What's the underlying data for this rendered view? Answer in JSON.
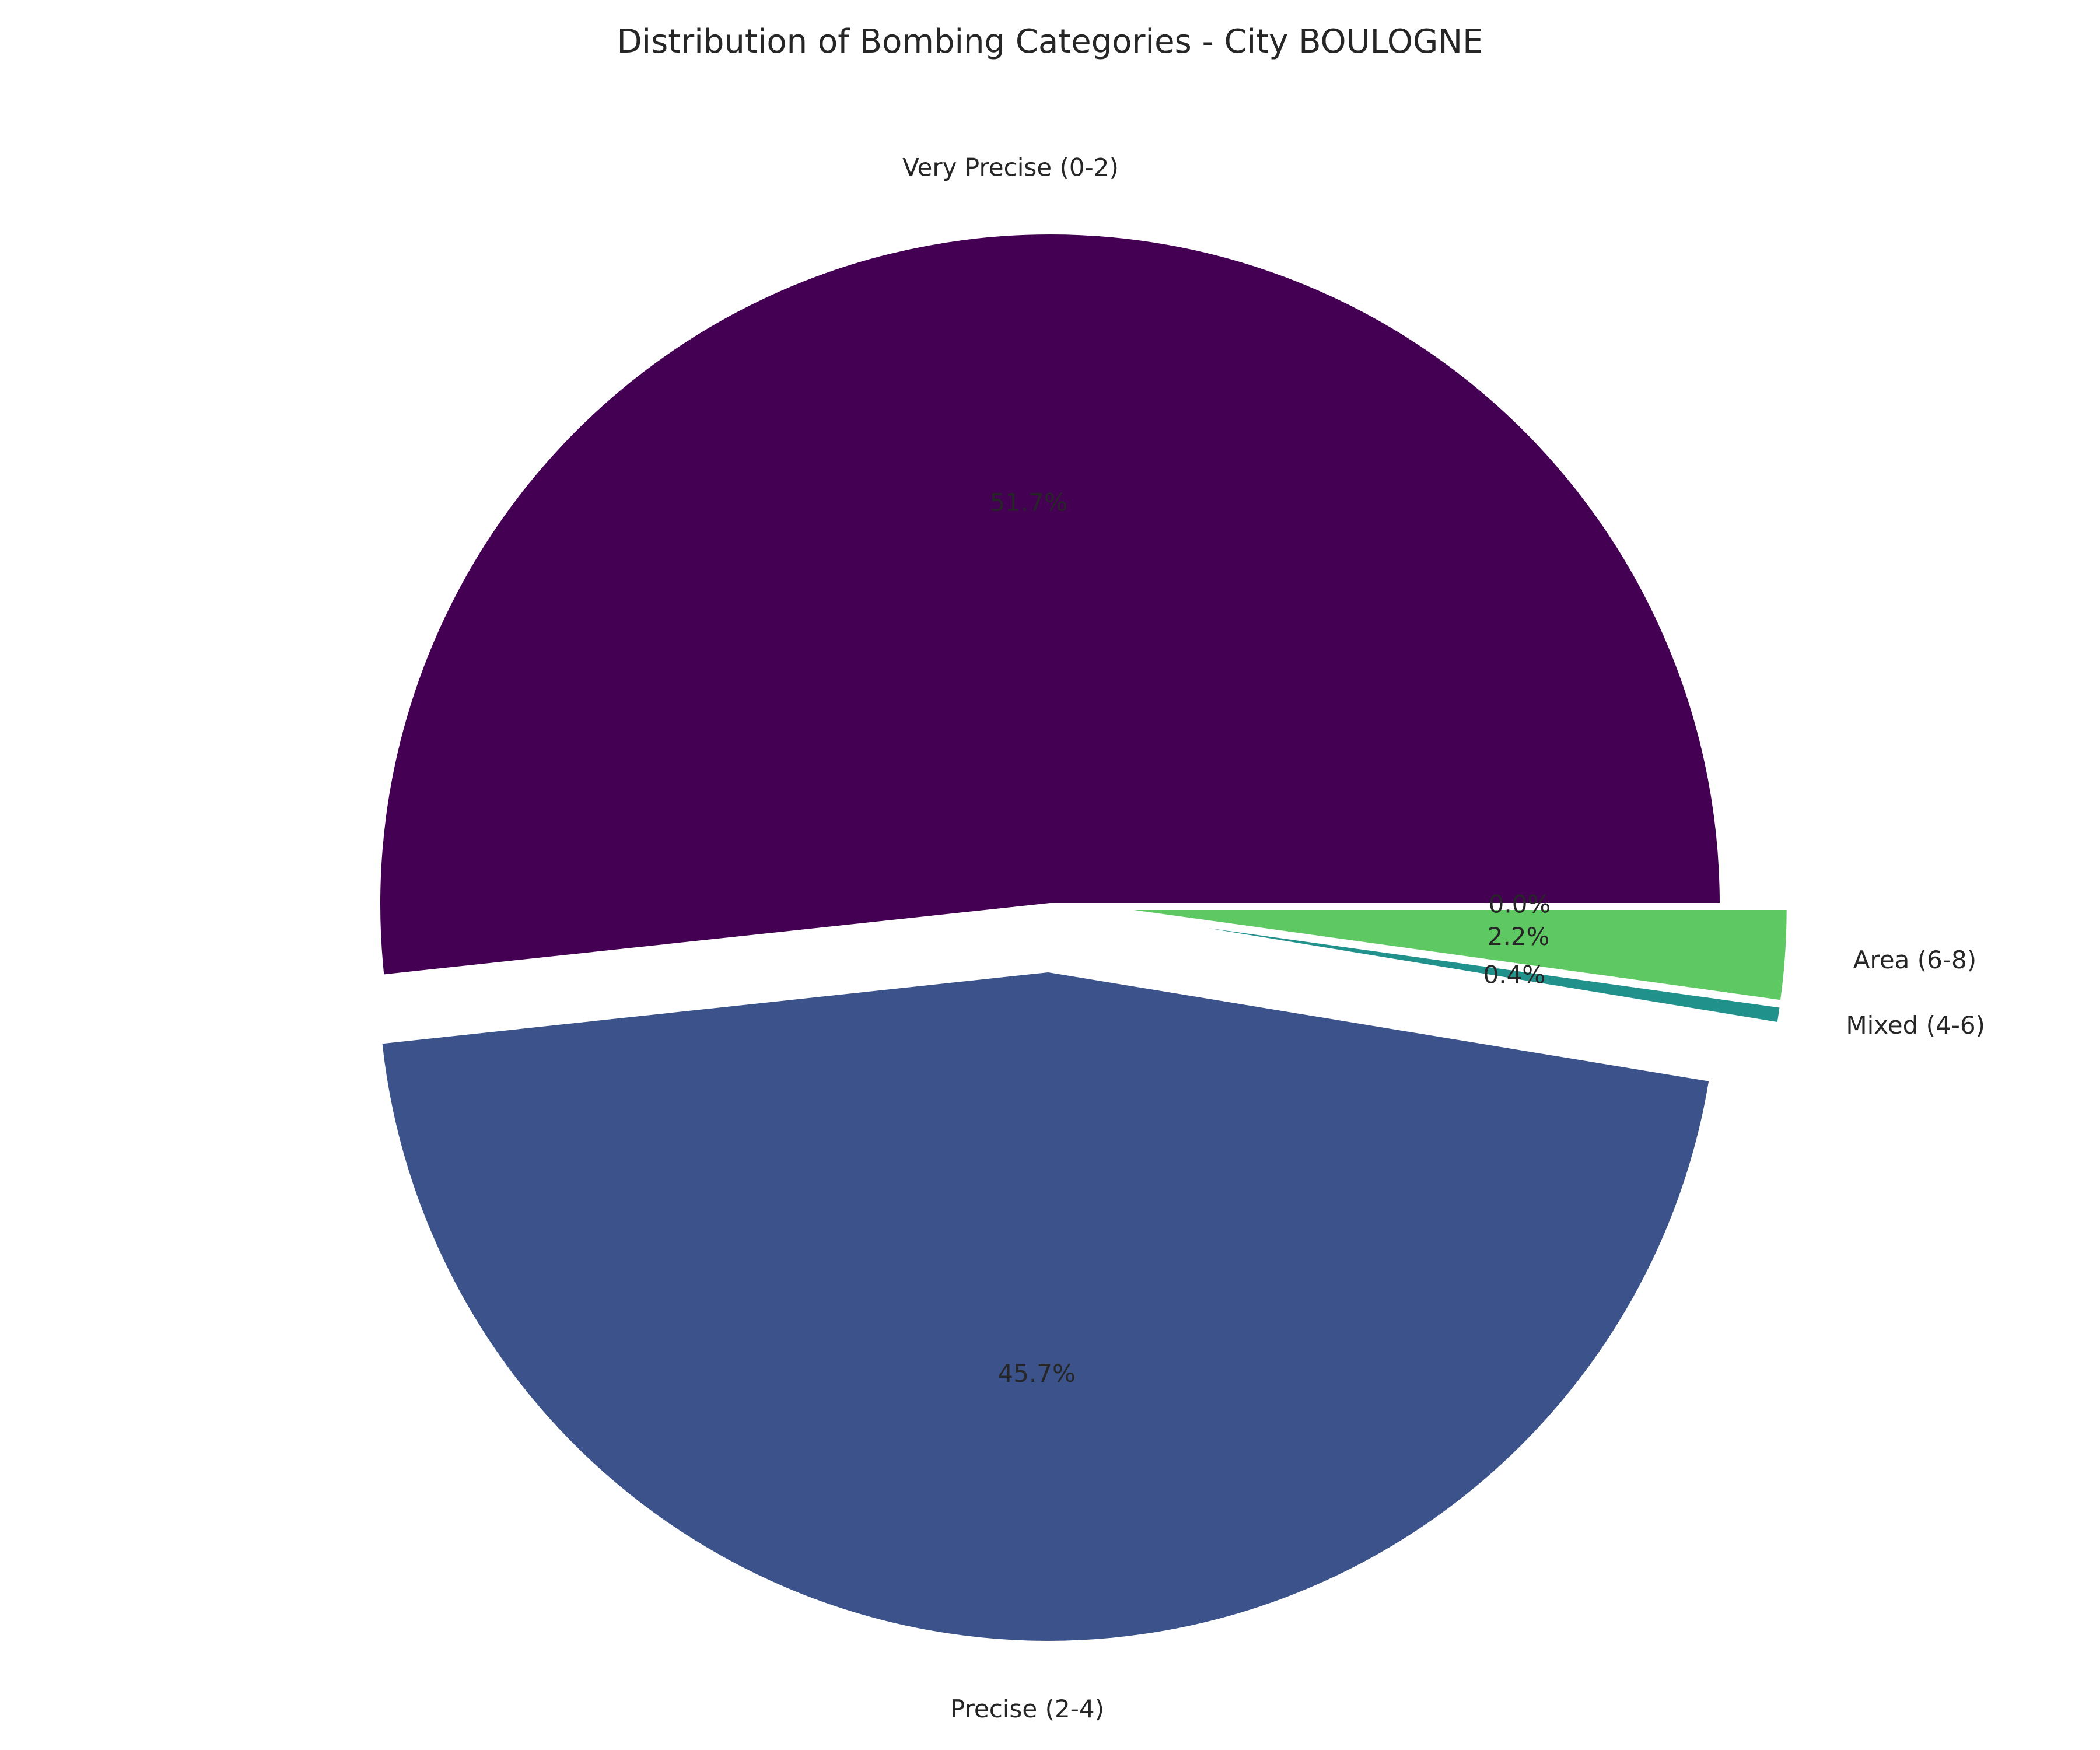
{
  "chart_data": {
    "type": "pie",
    "title": "Distribution of Bombing Categories - City BOULOGNE",
    "slices": [
      {
        "label": "Very Precise (0-2)",
        "value": 51.7,
        "pct_label": "51.7%",
        "color": "#440154",
        "exploded": false
      },
      {
        "label": "Precise (2-4)",
        "value": 45.7,
        "pct_label": "45.7%",
        "color": "#3b528b",
        "exploded": true
      },
      {
        "label": "Mixed (4-6)",
        "value": 0.4,
        "pct_label": "0.4%",
        "color": "#21918c",
        "exploded": true
      },
      {
        "label": "Area (6-8)",
        "value": 2.2,
        "pct_label": "2.2%",
        "color": "#5ec962",
        "exploded": true
      },
      {
        "label": "",
        "value": 0.0,
        "pct_label": "0.0%",
        "color": "#fde725",
        "exploded": true
      }
    ],
    "start_angle_deg": 0,
    "direction": "counterclockwise",
    "legend": "none"
  }
}
